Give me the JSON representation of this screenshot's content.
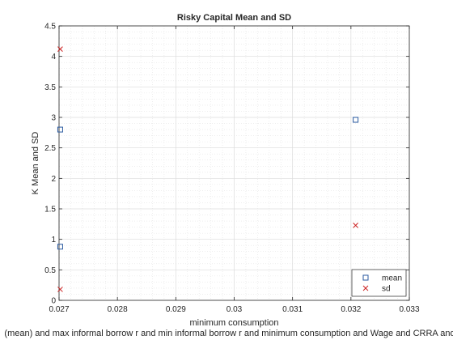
{
  "chart_data": {
    "type": "scatter",
    "title": "Risky Capital Mean and SD",
    "xlabel": "minimum consumption",
    "ylabel": "K Mean and SD",
    "caption": "(mean) and max informal borrow r and min informal borrow r and minimum consumption and Wage and CRRA and D",
    "xlim": [
      0.027,
      0.033
    ],
    "ylim": [
      0,
      4.5
    ],
    "xticks": [
      0.027,
      0.028,
      0.029,
      0.03,
      0.031,
      0.032,
      0.033
    ],
    "xtick_labels": [
      "0.027",
      "0.028",
      "0.029",
      "0.03",
      "0.031",
      "0.032",
      "0.033"
    ],
    "yticks": [
      0,
      0.5,
      1,
      1.5,
      2,
      2.5,
      3,
      3.5,
      4,
      4.5
    ],
    "ytick_labels": [
      "0",
      "0.5",
      "1",
      "1.5",
      "2",
      "2.5",
      "3",
      "3.5",
      "4",
      "4.5"
    ],
    "grid": true,
    "minor_grid": true,
    "legend_position": "bottom-right",
    "series": [
      {
        "name": "mean",
        "marker": "square",
        "color": "#2a5aa0",
        "points": [
          [
            0.02702,
            2.8
          ],
          [
            0.02702,
            0.88
          ],
          [
            0.03208,
            2.96
          ]
        ]
      },
      {
        "name": "sd",
        "marker": "x",
        "color": "#cc2222",
        "points": [
          [
            0.02702,
            4.12
          ],
          [
            0.02702,
            0.18
          ],
          [
            0.03208,
            1.23
          ]
        ]
      }
    ]
  }
}
